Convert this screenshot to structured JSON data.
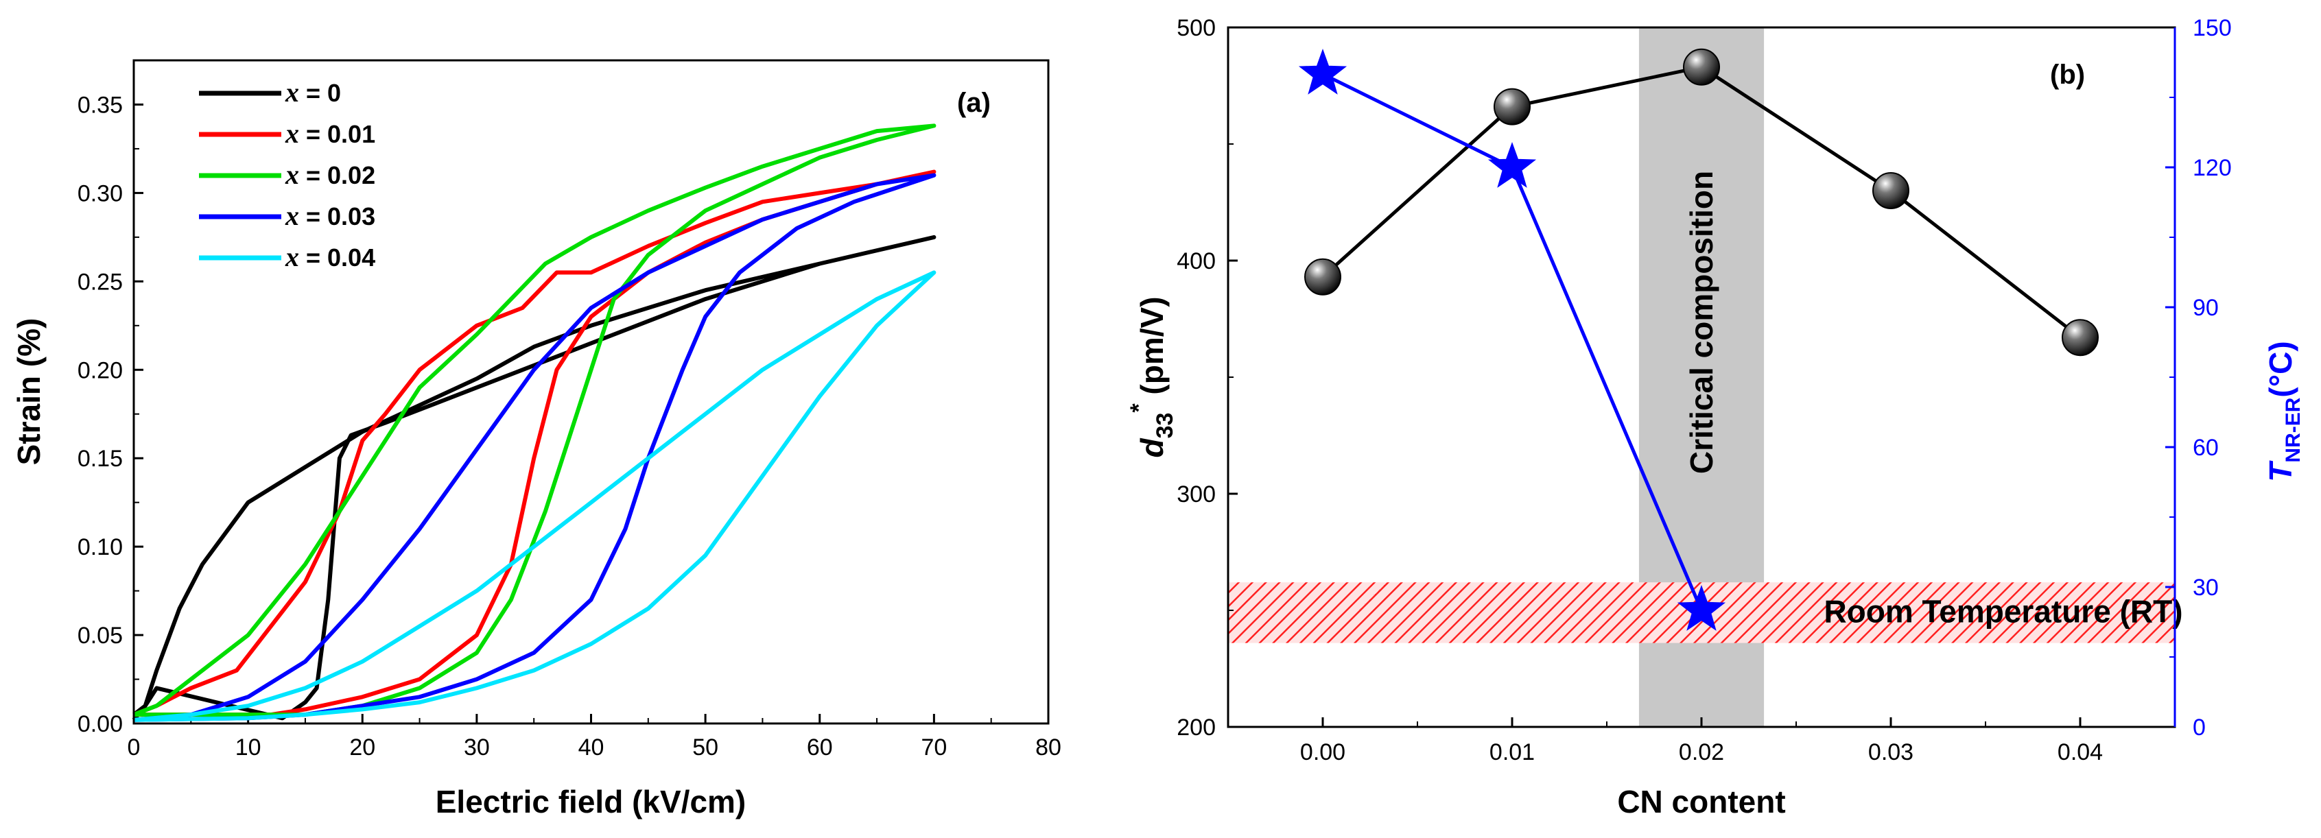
{
  "chart_data": [
    {
      "type": "line",
      "panel_label": "(a)",
      "xlabel": "Electric field (kV/cm)",
      "ylabel": "Strain (%)",
      "xlim": [
        0,
        80
      ],
      "ylim": [
        0,
        0.375
      ],
      "xticks": [
        0,
        10,
        20,
        30,
        40,
        50,
        60,
        70,
        80
      ],
      "yticks": [
        0.0,
        0.05,
        0.1,
        0.15,
        0.2,
        0.25,
        0.3,
        0.35
      ],
      "legend_position": "top-left",
      "series": [
        {
          "name": "x = 0",
          "legend_var": "x",
          "legend_value": "= 0",
          "color": "#000000",
          "up": [
            [
              0,
              0.005
            ],
            [
              1,
              0.01
            ],
            [
              2,
              0.02
            ],
            [
              13,
              0.003
            ],
            [
              15,
              0.012
            ],
            [
              16,
              0.02
            ],
            [
              17,
              0.07
            ],
            [
              18,
              0.15
            ],
            [
              19,
              0.163
            ],
            [
              22,
              0.17
            ],
            [
              30,
              0.19
            ],
            [
              40,
              0.215
            ],
            [
              50,
              0.24
            ],
            [
              60,
              0.26
            ],
            [
              70,
              0.275
            ]
          ],
          "down": [
            [
              70,
              0.275
            ],
            [
              60,
              0.26
            ],
            [
              50,
              0.245
            ],
            [
              40,
              0.225
            ],
            [
              35,
              0.213
            ],
            [
              30,
              0.195
            ],
            [
              25,
              0.18
            ],
            [
              20,
              0.165
            ],
            [
              15,
              0.145
            ],
            [
              10,
              0.125
            ],
            [
              6,
              0.09
            ],
            [
              4,
              0.065
            ],
            [
              2,
              0.03
            ],
            [
              1,
              0.01
            ],
            [
              0,
              0.002
            ]
          ]
        },
        {
          "name": "x = 0.01",
          "legend_var": "x",
          "legend_value": "= 0.01",
          "color": "#ff0000",
          "up": [
            [
              0,
              0.005
            ],
            [
              5,
              0.005
            ],
            [
              12,
              0.005
            ],
            [
              15,
              0.008
            ],
            [
              20,
              0.015
            ],
            [
              25,
              0.025
            ],
            [
              30,
              0.05
            ],
            [
              33,
              0.09
            ],
            [
              35,
              0.15
            ],
            [
              37,
              0.2
            ],
            [
              40,
              0.23
            ],
            [
              45,
              0.255
            ],
            [
              50,
              0.272
            ],
            [
              55,
              0.285
            ],
            [
              60,
              0.295
            ],
            [
              65,
              0.305
            ],
            [
              70,
              0.312
            ]
          ],
          "down": [
            [
              70,
              0.312
            ],
            [
              65,
              0.305
            ],
            [
              60,
              0.3
            ],
            [
              55,
              0.295
            ],
            [
              50,
              0.283
            ],
            [
              45,
              0.27
            ],
            [
              40,
              0.255
            ],
            [
              37,
              0.255
            ],
            [
              34,
              0.235
            ],
            [
              30,
              0.225
            ],
            [
              27,
              0.21
            ],
            [
              25,
              0.2
            ],
            [
              22,
              0.175
            ],
            [
              20,
              0.16
            ],
            [
              18,
              0.12
            ],
            [
              15,
              0.08
            ],
            [
              12,
              0.055
            ],
            [
              9,
              0.03
            ],
            [
              5,
              0.02
            ],
            [
              2,
              0.01
            ],
            [
              0,
              0.005
            ]
          ]
        },
        {
          "name": "x = 0.02",
          "legend_var": "x",
          "legend_value": "= 0.02",
          "color": "#00dd00",
          "up": [
            [
              0,
              0.005
            ],
            [
              10,
              0.005
            ],
            [
              15,
              0.005
            ],
            [
              20,
              0.01
            ],
            [
              25,
              0.02
            ],
            [
              30,
              0.04
            ],
            [
              33,
              0.07
            ],
            [
              36,
              0.12
            ],
            [
              38,
              0.16
            ],
            [
              40,
              0.2
            ],
            [
              42,
              0.24
            ],
            [
              45,
              0.265
            ],
            [
              50,
              0.29
            ],
            [
              55,
              0.305
            ],
            [
              60,
              0.32
            ],
            [
              65,
              0.33
            ],
            [
              70,
              0.338
            ]
          ],
          "down": [
            [
              70,
              0.338
            ],
            [
              65,
              0.335
            ],
            [
              60,
              0.325
            ],
            [
              55,
              0.315
            ],
            [
              50,
              0.303
            ],
            [
              45,
              0.29
            ],
            [
              40,
              0.275
            ],
            [
              36,
              0.26
            ],
            [
              33,
              0.24
            ],
            [
              30,
              0.22
            ],
            [
              25,
              0.19
            ],
            [
              20,
              0.14
            ],
            [
              15,
              0.09
            ],
            [
              10,
              0.05
            ],
            [
              5,
              0.025
            ],
            [
              2,
              0.01
            ],
            [
              0,
              0.005
            ]
          ]
        },
        {
          "name": "x = 0.03",
          "legend_var": "x",
          "legend_value": "= 0.03",
          "color": "#0000ff",
          "up": [
            [
              0,
              0.002
            ],
            [
              10,
              0.003
            ],
            [
              15,
              0.005
            ],
            [
              20,
              0.01
            ],
            [
              25,
              0.015
            ],
            [
              30,
              0.025
            ],
            [
              35,
              0.04
            ],
            [
              40,
              0.07
            ],
            [
              43,
              0.11
            ],
            [
              45,
              0.15
            ],
            [
              48,
              0.2
            ],
            [
              50,
              0.23
            ],
            [
              53,
              0.255
            ],
            [
              58,
              0.28
            ],
            [
              63,
              0.295
            ],
            [
              70,
              0.31
            ]
          ],
          "down": [
            [
              70,
              0.31
            ],
            [
              65,
              0.305
            ],
            [
              60,
              0.295
            ],
            [
              55,
              0.285
            ],
            [
              50,
              0.27
            ],
            [
              45,
              0.255
            ],
            [
              40,
              0.235
            ],
            [
              35,
              0.2
            ],
            [
              30,
              0.155
            ],
            [
              25,
              0.11
            ],
            [
              20,
              0.07
            ],
            [
              15,
              0.035
            ],
            [
              10,
              0.015
            ],
            [
              5,
              0.005
            ],
            [
              0,
              0.002
            ]
          ]
        },
        {
          "name": "x = 0.04",
          "legend_var": "x",
          "legend_value": "= 0.04",
          "color": "#00e5ff",
          "up": [
            [
              0,
              0.002
            ],
            [
              10,
              0.003
            ],
            [
              15,
              0.005
            ],
            [
              20,
              0.008
            ],
            [
              25,
              0.012
            ],
            [
              30,
              0.02
            ],
            [
              35,
              0.03
            ],
            [
              40,
              0.045
            ],
            [
              45,
              0.065
            ],
            [
              50,
              0.095
            ],
            [
              55,
              0.14
            ],
            [
              60,
              0.185
            ],
            [
              65,
              0.225
            ],
            [
              70,
              0.255
            ]
          ],
          "down": [
            [
              70,
              0.255
            ],
            [
              65,
              0.24
            ],
            [
              60,
              0.22
            ],
            [
              55,
              0.2
            ],
            [
              50,
              0.175
            ],
            [
              45,
              0.15
            ],
            [
              40,
              0.125
            ],
            [
              35,
              0.1
            ],
            [
              30,
              0.075
            ],
            [
              25,
              0.055
            ],
            [
              20,
              0.035
            ],
            [
              15,
              0.02
            ],
            [
              10,
              0.01
            ],
            [
              5,
              0.005
            ],
            [
              0,
              0.002
            ]
          ]
        }
      ]
    },
    {
      "type": "line",
      "panel_label": "(b)",
      "xlabel": "CN content",
      "ylabel_left_symbol": "d",
      "ylabel_left_sub": "33",
      "ylabel_left_sup": "*",
      "ylabel_left_unit": " (pm/V)",
      "ylabel_right_symbol": "T",
      "ylabel_right_sub": "NR-ER",
      "ylabel_right_unit": "(°C)",
      "xlim": [
        -0.005,
        0.045
      ],
      "xticks": [
        "0.00",
        "0.01",
        "0.02",
        "0.03",
        "0.04"
      ],
      "ylim_left": [
        200,
        500
      ],
      "yticks_left": [
        200,
        300,
        400,
        500
      ],
      "ylim_right": [
        0,
        150
      ],
      "yticks_right": [
        0,
        30,
        60,
        90,
        120,
        150
      ],
      "right_axis_color": "#0000ff",
      "critical_band": {
        "x_range": [
          0.0167,
          0.0233
        ],
        "label": "Critical composition",
        "color": "#c8c8c8"
      },
      "rt_band": {
        "y_range_right": [
          18,
          31
        ],
        "label": "Room Temperature (RT)",
        "color": "#ff2020"
      },
      "series": [
        {
          "name": "d33*",
          "axis": "left",
          "marker": "sphere",
          "color": "#000000",
          "x": [
            0.0,
            0.01,
            0.02,
            0.03,
            0.04
          ],
          "y": [
            393,
            466,
            483,
            430,
            367
          ]
        },
        {
          "name": "T_NR-ER",
          "axis": "right",
          "marker": "star",
          "color": "#0000ff",
          "x": [
            0.0,
            0.01,
            0.02
          ],
          "y": [
            140,
            120,
            25
          ]
        }
      ]
    }
  ]
}
